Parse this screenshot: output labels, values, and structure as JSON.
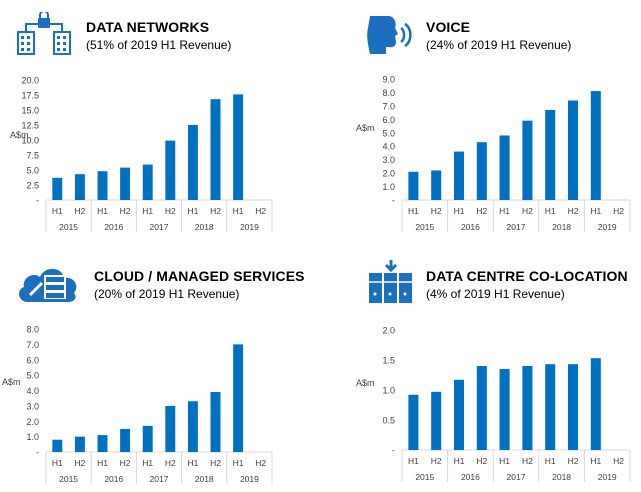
{
  "colors": {
    "bar": "#0070c0",
    "icon": "#1a6fbf",
    "axis": "#d9d9d9",
    "text": "#404040"
  },
  "panels": [
    {
      "id": "data-networks",
      "title": "DATA NETWORKS",
      "subtitle": "(51% of 2019 H1 Revenue)",
      "icon": "buildings-network-icon"
    },
    {
      "id": "voice",
      "title": "VOICE",
      "subtitle": "(24% of 2019 H1 Revenue)",
      "icon": "speaking-head-icon"
    },
    {
      "id": "cloud",
      "title": "CLOUD / MANAGED SERVICES",
      "subtitle": "(20% of 2019 H1 Revenue)",
      "icon": "cloud-server-icon"
    },
    {
      "id": "datacentre",
      "title": "DATA CENTRE CO-LOCATION",
      "subtitle": "(4% of 2019 H1 Revenue)",
      "icon": "server-rack-icon"
    }
  ],
  "chart_data": [
    {
      "type": "bar",
      "ylabel": "A$m",
      "categories": [
        "H1",
        "H2",
        "H1",
        "H2",
        "H1",
        "H2",
        "H1",
        "H2",
        "H1",
        "H2"
      ],
      "groups": [
        "2015",
        "2016",
        "2017",
        "2018",
        "2019"
      ],
      "values": [
        3.7,
        4.3,
        4.8,
        5.4,
        5.9,
        9.9,
        12.5,
        16.8,
        17.6,
        null
      ],
      "ylim": [
        0,
        20
      ],
      "yticks": [
        "-",
        "2.5",
        "5.0",
        "7.5",
        "10.0",
        "12.5",
        "15.0",
        "17.5",
        "20.0"
      ]
    },
    {
      "type": "bar",
      "ylabel": "A$m",
      "categories": [
        "H1",
        "H2",
        "H1",
        "H2",
        "H1",
        "H2",
        "H1",
        "H2",
        "H1",
        "H2"
      ],
      "groups": [
        "2015",
        "2016",
        "2017",
        "2018",
        "2019"
      ],
      "values": [
        2.1,
        2.2,
        3.6,
        4.3,
        4.8,
        5.9,
        6.7,
        7.4,
        8.1,
        null
      ],
      "ylim": [
        0,
        9
      ],
      "yticks": [
        "-",
        "1.0",
        "2.0",
        "3.0",
        "4.0",
        "5.0",
        "6.0",
        "7.0",
        "8.0",
        "9.0"
      ]
    },
    {
      "type": "bar",
      "ylabel": "A$m",
      "categories": [
        "H1",
        "H2",
        "H1",
        "H2",
        "H1",
        "H2",
        "H1",
        "H2",
        "H1",
        "H2"
      ],
      "groups": [
        "2015",
        "2016",
        "2017",
        "2018",
        "2019"
      ],
      "values": [
        0.8,
        1.0,
        1.1,
        1.5,
        1.7,
        3.0,
        3.3,
        3.9,
        7.0,
        null
      ],
      "ylim": [
        0,
        8
      ],
      "yticks": [
        "-",
        "1.0",
        "2.0",
        "3.0",
        "4.0",
        "5.0",
        "6.0",
        "7.0",
        "8.0"
      ]
    },
    {
      "type": "bar",
      "ylabel": "A$m",
      "categories": [
        "H1",
        "H2",
        "H1",
        "H2",
        "H1",
        "H2",
        "H1",
        "H2",
        "H1",
        "H2"
      ],
      "groups": [
        "2015",
        "2016",
        "2017",
        "2018",
        "2019"
      ],
      "values": [
        0.92,
        0.97,
        1.17,
        1.4,
        1.35,
        1.4,
        1.43,
        1.43,
        1.53,
        null
      ],
      "ylim": [
        0,
        2
      ],
      "yticks": [
        "-",
        "0.5",
        "1.0",
        "1.5",
        "2.0"
      ]
    }
  ]
}
